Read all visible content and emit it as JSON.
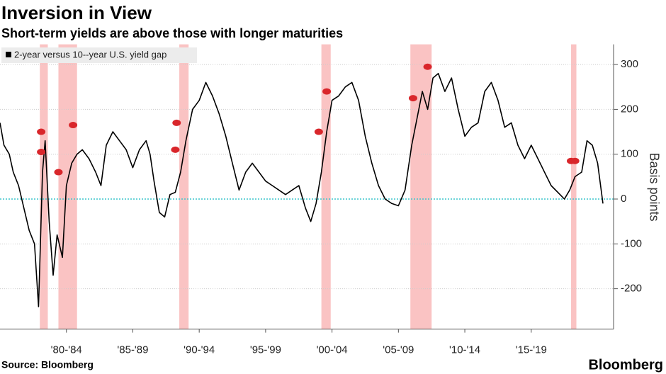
{
  "chart_data": {
    "type": "line",
    "title": "Inversion in View",
    "subtitle": "Short-term yields are above those with longer maturities",
    "y_axis_label": "Basis points",
    "source": "Source: Bloomberg",
    "brand": "Bloomberg",
    "x": [
      1977.0,
      1977.3,
      1977.7,
      1978.0,
      1978.4,
      1978.8,
      1979.2,
      1979.6,
      1979.9,
      1980.2,
      1980.4,
      1980.7,
      1981.0,
      1981.3,
      1981.7,
      1982.0,
      1982.4,
      1982.8,
      1983.2,
      1983.7,
      1984.2,
      1984.6,
      1985.0,
      1985.5,
      1986.0,
      1986.5,
      1987.0,
      1987.5,
      1988.0,
      1988.3,
      1988.6,
      1989.0,
      1989.4,
      1989.8,
      1990.2,
      1990.6,
      1991.0,
      1991.5,
      1992.0,
      1992.5,
      1993.0,
      1993.5,
      1994.0,
      1994.5,
      1995.0,
      1995.5,
      1996.0,
      1996.5,
      1997.0,
      1997.5,
      1998.0,
      1998.5,
      1999.0,
      1999.5,
      2000.0,
      2000.4,
      2000.8,
      2001.2,
      2001.6,
      2002.0,
      2002.5,
      2003.0,
      2003.5,
      2004.0,
      2004.5,
      2005.0,
      2005.5,
      2006.0,
      2006.5,
      2007.0,
      2007.5,
      2008.0,
      2008.4,
      2008.8,
      2009.2,
      2009.6,
      2010.0,
      2010.5,
      2011.0,
      2011.5,
      2012.0,
      2012.5,
      2013.0,
      2013.5,
      2014.0,
      2014.5,
      2015.0,
      2015.5,
      2016.0,
      2016.5,
      2017.0,
      2017.5,
      2018.0,
      2018.5,
      2019.0,
      2019.5,
      2019.9,
      2020.3,
      2020.8,
      2021.2,
      2021.6,
      2022.0,
      2022.4
    ],
    "series": [
      {
        "name": "2-year versus 10--year U.S. yield gap",
        "color": "#000000",
        "values": [
          170,
          120,
          100,
          60,
          30,
          -20,
          -70,
          -100,
          -240,
          60,
          130,
          -50,
          -170,
          -80,
          -130,
          30,
          80,
          100,
          110,
          90,
          60,
          30,
          120,
          150,
          130,
          110,
          70,
          110,
          130,
          100,
          40,
          -30,
          -40,
          10,
          15,
          60,
          130,
          200,
          220,
          260,
          230,
          190,
          140,
          80,
          20,
          60,
          80,
          60,
          40,
          30,
          20,
          10,
          20,
          30,
          -20,
          -50,
          -10,
          60,
          150,
          220,
          230,
          250,
          260,
          220,
          140,
          80,
          30,
          0,
          -10,
          -15,
          20,
          120,
          180,
          240,
          200,
          270,
          280,
          240,
          270,
          200,
          140,
          160,
          170,
          240,
          260,
          220,
          160,
          170,
          120,
          90,
          120,
          90,
          60,
          30,
          15,
          0,
          20,
          50,
          60,
          130,
          120,
          80,
          -10
        ]
      }
    ],
    "xlim": [
      1977.0,
      2023.2
    ],
    "xticks": [
      {
        "value": 1982,
        "label": "'80-'84"
      },
      {
        "value": 1987,
        "label": "'85-'89"
      },
      {
        "value": 1992,
        "label": "'90-'94"
      },
      {
        "value": 1997,
        "label": "'95-'99"
      },
      {
        "value": 2002,
        "label": "'00-'04"
      },
      {
        "value": 2007,
        "label": "'05-'09"
      },
      {
        "value": 2012,
        "label": "'10-'14"
      },
      {
        "value": 2017,
        "label": "'15-'19"
      }
    ],
    "ylim": [
      -290,
      345
    ],
    "yticks": [
      300,
      200,
      100,
      0,
      -100,
      -200
    ],
    "grid": true,
    "zero_line_color": "#3cc6cc",
    "shaded_periods": [
      [
        1980.0,
        1980.6
      ],
      [
        1981.4,
        1982.8
      ],
      [
        1990.5,
        1991.2
      ],
      [
        2001.2,
        2001.9
      ],
      [
        2007.9,
        2009.5
      ],
      [
        2020.0,
        2020.4
      ]
    ],
    "shade_color": "#f9b8b8",
    "markers": {
      "color": "#d9262b",
      "x": [
        1980.1,
        1980.1,
        1981.4,
        1982.5,
        1990.3,
        1990.2,
        2001.0,
        2001.6,
        2008.1,
        2009.2,
        2020.0,
        2020.3
      ],
      "y": [
        150,
        105,
        60,
        165,
        170,
        110,
        150,
        240,
        225,
        295,
        85,
        85
      ]
    }
  }
}
